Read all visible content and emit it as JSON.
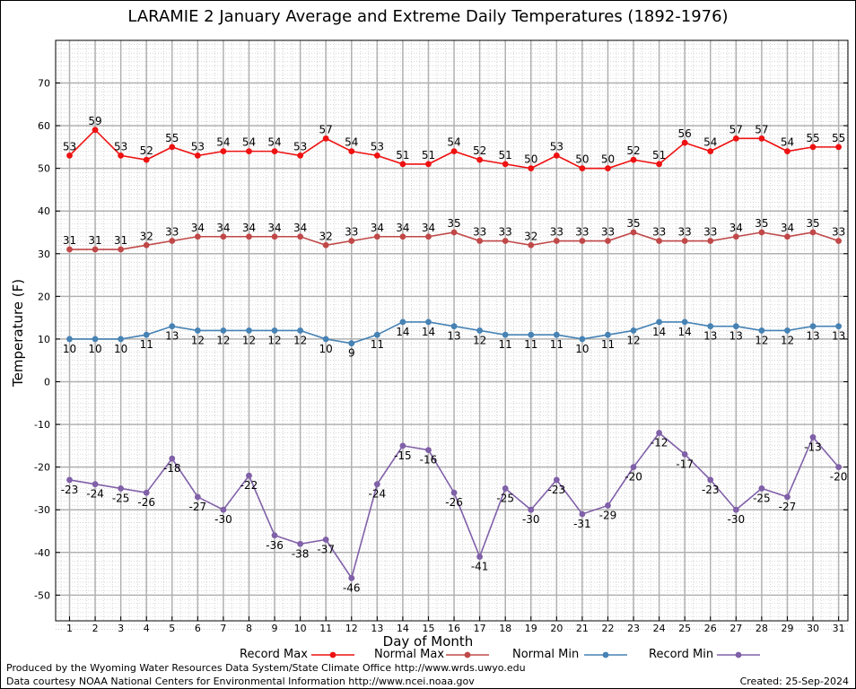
{
  "chart_data": {
    "type": "line",
    "title": "LARAMIE 2 January Average and Extreme Daily Temperatures (1892-1976)",
    "xlabel": "Day of Month",
    "ylabel": "Temperature (F)",
    "xlim": [
      0.5,
      31.5
    ],
    "ylim": [
      -58,
      79
    ],
    "yticks": [
      70,
      60,
      50,
      40,
      30,
      20,
      10,
      0,
      -10,
      -20,
      -30,
      -40,
      -50
    ],
    "grid": true,
    "legend_position": "bottom",
    "x": [
      1,
      2,
      3,
      4,
      5,
      6,
      7,
      8,
      9,
      10,
      11,
      12,
      13,
      14,
      15,
      16,
      17,
      18,
      19,
      20,
      21,
      22,
      23,
      24,
      25,
      26,
      27,
      28,
      29,
      30,
      31
    ],
    "series": [
      {
        "name": "Record Max",
        "color": "#ee1111",
        "label_position": "above",
        "values": [
          53,
          59,
          53,
          52,
          55,
          53,
          54,
          54,
          54,
          53,
          57,
          54,
          53,
          51,
          51,
          54,
          52,
          51,
          50,
          53,
          50,
          50,
          52,
          51,
          56,
          54,
          57,
          57,
          54,
          55,
          55
        ]
      },
      {
        "name": "Normal Max",
        "color": "#c04848",
        "label_position": "above",
        "values": [
          31,
          31,
          31,
          32,
          33,
          34,
          34,
          34,
          34,
          34,
          32,
          33,
          34,
          34,
          34,
          35,
          33,
          33,
          32,
          33,
          33,
          33,
          35,
          33,
          33,
          33,
          34,
          35,
          34,
          35,
          33
        ]
      },
      {
        "name": "Normal Min",
        "color": "#4682b4",
        "label_position": "below",
        "values": [
          10,
          10,
          10,
          11,
          13,
          12,
          12,
          12,
          12,
          12,
          10,
          9,
          11,
          14,
          14,
          13,
          12,
          11,
          11,
          11,
          10,
          11,
          12,
          14,
          14,
          13,
          13,
          12,
          12,
          13,
          13
        ]
      },
      {
        "name": "Record Min",
        "color": "#8060a8",
        "label_position": "below",
        "values": [
          -23,
          -24,
          -25,
          -26,
          -18,
          -27,
          -30,
          -22,
          -36,
          -38,
          -37,
          -46,
          -24,
          -15,
          -16,
          -26,
          -41,
          -25,
          -30,
          -23,
          -31,
          -29,
          -20,
          -12,
          -17,
          -23,
          -30,
          -25,
          -27,
          -13,
          -20
        ]
      }
    ]
  },
  "footer": {
    "produced_by": "Produced by the Wyoming Water Resources Data System/State Climate Office http://www.wrds.uwyo.edu",
    "data_courtesy": "Data courtesy NOAA National Centers for Environmental Information http://www.ncei.noaa.gov",
    "created": "Created:  25-Sep-2024"
  }
}
